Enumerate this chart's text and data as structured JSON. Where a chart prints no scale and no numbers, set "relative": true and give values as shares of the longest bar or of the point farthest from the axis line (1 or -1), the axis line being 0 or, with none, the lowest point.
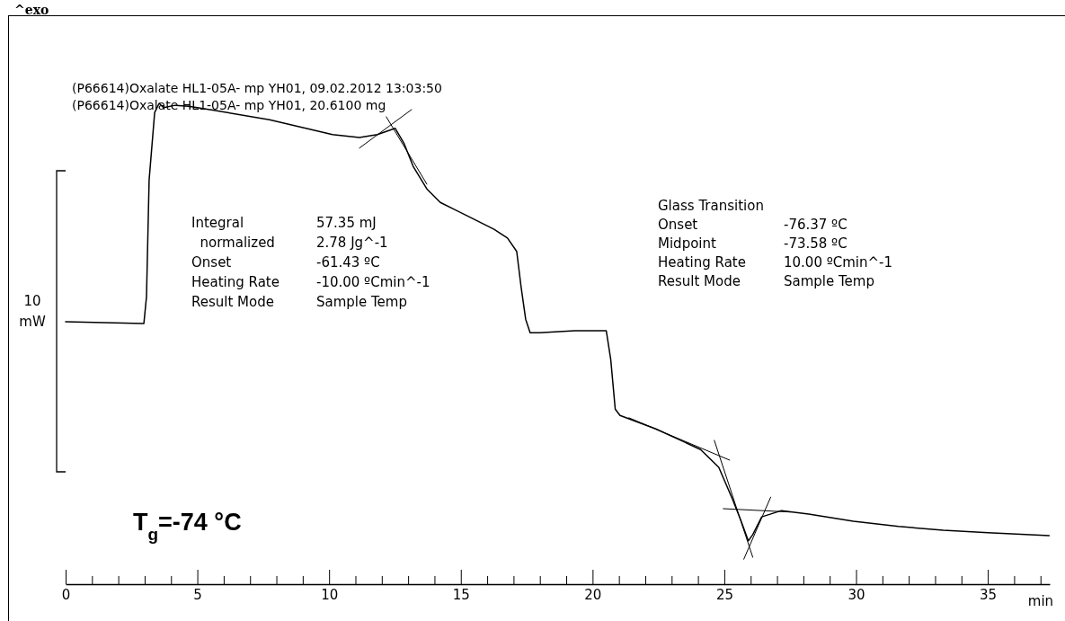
{
  "chart_data": {
    "type": "line",
    "relative": true,
    "xlabel": "min",
    "ylabel": "10 mW",
    "annotations": [
      "^exo",
      "(P66614)Oxalate HL1-05A- mp YH01, 09.02.2012 13:03:50",
      "(P66614)Oxalate HL1-05A- mp YH01, 20.6100 mg",
      "Integral\t57.35 mJ\n  normalized\t2.78 Jg^-1\nOnset\t-61.43 ºC\nHeating Rate\t-10.00 ºCmin^-1\nResult Mode\tSample Temp",
      "Glass Transition\t\nOnset\t-76.37 ºC\nMidpoint\t-73.58 ºC\nHeating Rate\t10.00 ºCmin^-1\nResult Mode\tSample Temp",
      "T$_{g}$=-74 °C"
    ],
    "xlim": [
      0,
      37.35
    ],
    "xticks": [
      0,
      {
        "value": 1,
        "label": null
      },
      {
        "value": 2,
        "label": null
      },
      {
        "value": 3,
        "label": null
      },
      {
        "value": 4,
        "label": null
      },
      5,
      {
        "value": 6,
        "label": null
      },
      {
        "value": 7,
        "label": null
      },
      {
        "value": 8,
        "label": null
      },
      {
        "value": 9,
        "label": null
      },
      10,
      {
        "value": 11,
        "label": null
      },
      {
        "value": 12,
        "label": null
      },
      {
        "value": 13,
        "label": null
      },
      {
        "value": 14,
        "label": null
      },
      15,
      {
        "value": 16,
        "label": null
      },
      {
        "value": 17,
        "label": null
      },
      {
        "value": 18,
        "label": null
      },
      {
        "value": 19,
        "label": null
      },
      20,
      {
        "value": 21,
        "label": null
      },
      {
        "value": 22,
        "label": null
      },
      {
        "value": 23,
        "label": null
      },
      {
        "value": 24,
        "label": null
      },
      25,
      {
        "value": 26,
        "label": null
      },
      {
        "value": 27,
        "label": null
      },
      {
        "value": 28,
        "label": null
      },
      {
        "value": 29,
        "label": null
      },
      30,
      {
        "value": 31,
        "label": null
      },
      {
        "value": 32,
        "label": null
      },
      {
        "value": 33,
        "label": null
      },
      {
        "value": 34,
        "label": null
      },
      35,
      {
        "value": 36,
        "label": null
      },
      {
        "value": 37,
        "label": null
      }
    ],
    "x": [
      0,
      2.97,
      3.07,
      3.17,
      3.38,
      3.55,
      3.72,
      4.16,
      4.67,
      5.69,
      7.74,
      10.13,
      11.15,
      11.83,
      12.51,
      12.85,
      13.19,
      13.71,
      14.22,
      15.24,
      16.26,
      16.77,
      17.12,
      17.29,
      17.46,
      17.63,
      17.97,
      19.33,
      20.52,
      20.69,
      20.86,
      21.04,
      22.4,
      24.1,
      24.79,
      25.3,
      25.64,
      25.91,
      26.08,
      26.42,
      27.17,
      28.2,
      29.9,
      31.61,
      33.31,
      35.01,
      37.33
    ],
    "series": [
      {
        "color": "#000000",
        "values": [
          0.546,
          0.542,
          0.598,
          0.841,
          0.981,
          1.0,
          0.991,
          0.996,
          0.994,
          0.985,
          0.966,
          0.935,
          0.929,
          0.935,
          0.948,
          0.916,
          0.869,
          0.822,
          0.794,
          0.766,
          0.738,
          0.72,
          0.692,
          0.617,
          0.551,
          0.523,
          0.523,
          0.527,
          0.527,
          0.467,
          0.364,
          0.351,
          0.323,
          0.28,
          0.243,
          0.178,
          0.131,
          0.09,
          0.103,
          0.14,
          0.153,
          0.146,
          0.131,
          0.12,
          0.112,
          0.107,
          0.101
        ]
      },
      {
        "type": "line",
        "color": "#000000",
        "x": [
          11.15,
          13.13
        ],
        "values": [
          0.907,
          0.987
        ]
      },
      {
        "type": "line",
        "color": "#000000",
        "x": [
          12.17,
          13.71
        ],
        "values": [
          0.972,
          0.832
        ]
      },
      {
        "type": "line",
        "color": "#000000",
        "x": [
          21.38,
          25.2
        ],
        "values": [
          0.346,
          0.258
        ]
      },
      {
        "type": "line",
        "color": "#000000",
        "x": [
          24.62,
          26.08
        ],
        "values": [
          0.299,
          0.056
        ]
      },
      {
        "type": "line",
        "color": "#000000",
        "x": [
          24.96,
          27.51
        ],
        "values": [
          0.157,
          0.15
        ]
      },
      {
        "type": "line",
        "color": "#000000",
        "x": [
          25.74,
          26.76
        ],
        "values": [
          0.052,
          0.181
        ]
      }
    ]
  }
}
